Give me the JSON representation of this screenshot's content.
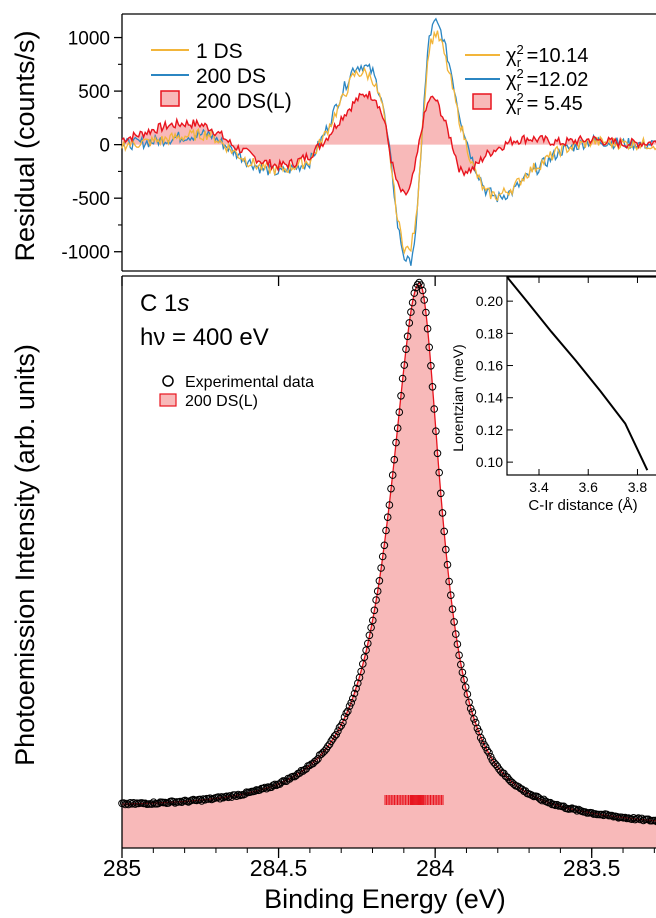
{
  "chart_data": [
    {
      "type": "line",
      "panel": "residual",
      "ylabel": "Residual (counts/s)",
      "xlim": [
        285.0,
        283.25
      ],
      "ylim": [
        -1180,
        1220
      ],
      "yticks": [
        1000,
        500,
        0,
        -500,
        -1000
      ],
      "ytick_labels": [
        "1000",
        "500",
        "0",
        "-500",
        "-1000"
      ],
      "legend_left": [
        "1 DS",
        "200 DS",
        "200 DS(L)"
      ],
      "legend_right": [
        {
          "pre": "χ",
          "sup": "2",
          "sub": "r",
          "post": " =10.14"
        },
        {
          "pre": "χ",
          "sup": "2",
          "sub": "r",
          "post": " =12.02"
        },
        {
          "pre": "χ",
          "sup": "2",
          "sub": "r",
          "post": " =  5.45"
        }
      ],
      "series": [
        {
          "name": "1 DS",
          "color": "#f2b53a",
          "x": [
            285.0,
            284.9,
            284.8,
            284.72,
            284.65,
            284.6,
            284.55,
            284.5,
            284.45,
            284.4,
            284.35,
            284.3,
            284.26,
            284.23,
            284.2,
            284.17,
            284.14,
            284.12,
            284.1,
            284.08,
            284.06,
            284.04,
            284.02,
            284.0,
            283.98,
            283.95,
            283.92,
            283.88,
            283.84,
            283.8,
            283.75,
            283.7,
            283.6,
            283.5,
            283.4,
            283.25
          ],
          "y": [
            0,
            30,
            80,
            100,
            -50,
            -150,
            -220,
            -240,
            -200,
            -150,
            100,
            400,
            650,
            680,
            620,
            380,
            -200,
            -700,
            -950,
            -1000,
            -700,
            200,
            900,
            1050,
            950,
            600,
            200,
            -200,
            -450,
            -480,
            -400,
            -250,
            -50,
            30,
            10,
            0
          ]
        },
        {
          "name": "200 DS",
          "color": "#2b86c2",
          "x": [
            285.0,
            284.9,
            284.8,
            284.72,
            284.65,
            284.6,
            284.55,
            284.5,
            284.45,
            284.4,
            284.35,
            284.3,
            284.26,
            284.23,
            284.2,
            284.17,
            284.14,
            284.12,
            284.1,
            284.08,
            284.06,
            284.04,
            284.02,
            284.0,
            283.98,
            283.95,
            283.92,
            283.88,
            283.84,
            283.8,
            283.75,
            283.7,
            283.6,
            283.5,
            283.4,
            283.25
          ],
          "y": [
            0,
            30,
            80,
            100,
            -50,
            -150,
            -230,
            -260,
            -220,
            -160,
            120,
            470,
            720,
            740,
            680,
            430,
            -180,
            -750,
            -1040,
            -1120,
            -800,
            200,
            1000,
            1150,
            1050,
            700,
            250,
            -150,
            -420,
            -500,
            -430,
            -280,
            -60,
            40,
            10,
            0
          ]
        },
        {
          "name": "200 DS(L)",
          "color": "#e8141e",
          "fill": "#f8b9b9",
          "x": [
            285.0,
            284.95,
            284.9,
            284.85,
            284.8,
            284.75,
            284.72,
            284.68,
            284.65,
            284.6,
            284.55,
            284.5,
            284.45,
            284.4,
            284.35,
            284.3,
            284.25,
            284.22,
            284.19,
            284.16,
            284.14,
            284.12,
            284.1,
            284.08,
            284.06,
            284.04,
            284.02,
            284.0,
            283.98,
            283.95,
            283.92,
            283.88,
            283.84,
            283.8,
            283.75,
            283.7,
            283.6,
            283.5,
            283.4,
            283.3,
            283.25
          ],
          "y": [
            50,
            90,
            140,
            180,
            200,
            190,
            160,
            80,
            0,
            -80,
            -160,
            -200,
            -170,
            -100,
            50,
            250,
            420,
            480,
            440,
            200,
            -150,
            -380,
            -480,
            -420,
            -150,
            200,
            420,
            430,
            300,
            50,
            -250,
            -230,
            -100,
            -30,
            40,
            60,
            20,
            50,
            10,
            20,
            0
          ]
        }
      ]
    },
    {
      "type": "line",
      "panel": "main",
      "ylabel": "Photoemission Intensity (arb. units)",
      "xlabel": "Binding Energy (eV)",
      "xlim": [
        285.0,
        283.25
      ],
      "xticks": [
        285.0,
        284.5,
        284.0,
        283.5
      ],
      "xtick_labels": [
        "285",
        "284.5",
        "284",
        "283.5"
      ],
      "peak_label": "C 1",
      "peak_label_italic": "s",
      "photon_energy": "hν = 400 eV",
      "legend": [
        "Experimental data",
        "200 DS(L)"
      ],
      "peak_center_eV": 284.05,
      "peak_height": 1.0,
      "baseline_low_be_end": 0.0,
      "baseline_high_be_end": 0.03,
      "series": [
        {
          "name": "Experimental data",
          "marker": "open-circle",
          "color": "#000000"
        },
        {
          "name": "200 DS(L)",
          "color": "#e8141e",
          "fill": "#f8b9b9"
        }
      ],
      "components_be_eV": [
        284.16,
        284.155,
        284.15,
        284.145,
        284.14,
        284.135,
        284.13,
        284.125,
        284.12,
        284.115,
        284.11,
        284.105,
        284.1,
        284.095,
        284.09,
        284.085,
        284.08,
        284.077,
        284.074,
        284.071,
        284.068,
        284.065,
        284.062,
        284.059,
        284.056,
        284.053,
        284.05,
        284.047,
        284.044,
        284.041,
        284.038,
        284.035,
        284.03,
        284.025,
        284.02,
        284.015,
        284.01,
        284.005,
        284.0,
        283.995,
        283.99,
        283.985,
        283.98,
        283.975
      ]
    },
    {
      "type": "line",
      "panel": "inset",
      "ylabel": "Lorentzian (meV)",
      "xlabel": "C-Ir distance (Å)",
      "xlim": [
        3.27,
        3.92
      ],
      "ylim": [
        0.092,
        0.215
      ],
      "xticks": [
        3.4,
        3.6,
        3.8
      ],
      "xtick_labels": [
        "3.4",
        "3.6",
        "3.8"
      ],
      "yticks": [
        0.2,
        0.18,
        0.16,
        0.14,
        0.12,
        0.1
      ],
      "ytick_labels": [
        "0.20",
        "0.18",
        "0.16",
        "0.14",
        "0.12",
        "0.10"
      ],
      "series": [
        {
          "name": "",
          "color": "#000000",
          "x": [
            3.27,
            3.35,
            3.45,
            3.55,
            3.65,
            3.75,
            3.84
          ],
          "y": [
            0.218,
            0.2,
            0.181,
            0.163,
            0.144,
            0.124,
            0.095
          ]
        }
      ]
    }
  ]
}
